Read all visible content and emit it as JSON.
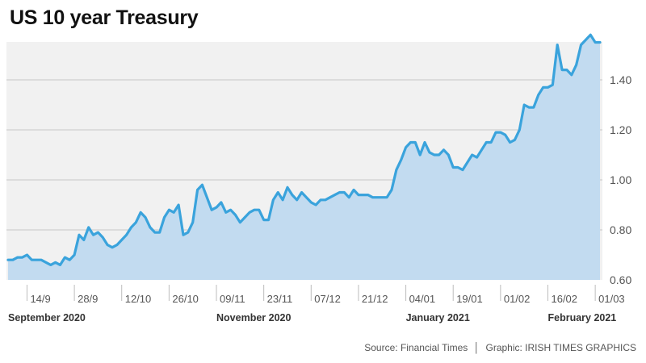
{
  "title": "US 10 year Treasury",
  "source_label": "Source: Financial Times",
  "graphic_label": "Graphic: IRISH TIMES GRAPHICS",
  "colors": {
    "plot_bg": "#f1f1f1",
    "area_fill": "#c2dbf0",
    "line": "#3aa3dc",
    "grid": "#c8c8c8",
    "axis_text": "#555555",
    "month_text": "#333333"
  },
  "chart_data": {
    "type": "area",
    "title": "US 10 year Treasury",
    "xlabel": "",
    "ylabel": "",
    "ylim": [
      0.6,
      1.6
    ],
    "yticks": [
      0.6,
      0.8,
      1.0,
      1.2,
      1.4
    ],
    "ytick_labels": [
      "0.60",
      "0.80",
      "1.00",
      "1.20",
      "1.40"
    ],
    "x_ticks": [
      {
        "label": "14/9",
        "index": 4
      },
      {
        "label": "28/9",
        "index": 14
      },
      {
        "label": "12/10",
        "index": 24
      },
      {
        "label": "26/10",
        "index": 34
      },
      {
        "label": "09/11",
        "index": 44
      },
      {
        "label": "23/11",
        "index": 54
      },
      {
        "label": "07/12",
        "index": 64
      },
      {
        "label": "21/12",
        "index": 74
      },
      {
        "label": "04/01",
        "index": 84
      },
      {
        "label": "19/01",
        "index": 94
      },
      {
        "label": "01/02",
        "index": 104
      },
      {
        "label": "16/02",
        "index": 114
      },
      {
        "label": "01/03",
        "index": 124
      }
    ],
    "month_labels": [
      {
        "label": "September 2020",
        "index": 0
      },
      {
        "label": "November 2020",
        "index": 44
      },
      {
        "label": "January 2021",
        "index": 84
      },
      {
        "label": "February 2021",
        "index": 114
      }
    ],
    "grid": true,
    "series": [
      {
        "name": "US 10 year Treasury yield",
        "values": [
          0.68,
          0.68,
          0.69,
          0.69,
          0.7,
          0.68,
          0.68,
          0.68,
          0.67,
          0.66,
          0.67,
          0.66,
          0.69,
          0.68,
          0.7,
          0.78,
          0.76,
          0.81,
          0.78,
          0.79,
          0.77,
          0.74,
          0.73,
          0.74,
          0.76,
          0.78,
          0.81,
          0.83,
          0.87,
          0.85,
          0.81,
          0.79,
          0.79,
          0.85,
          0.88,
          0.87,
          0.9,
          0.78,
          0.79,
          0.83,
          0.96,
          0.98,
          0.93,
          0.88,
          0.89,
          0.91,
          0.87,
          0.88,
          0.86,
          0.83,
          0.85,
          0.87,
          0.88,
          0.88,
          0.84,
          0.84,
          0.92,
          0.95,
          0.92,
          0.97,
          0.94,
          0.92,
          0.95,
          0.93,
          0.91,
          0.9,
          0.92,
          0.92,
          0.93,
          0.94,
          0.95,
          0.95,
          0.93,
          0.96,
          0.94,
          0.94,
          0.94,
          0.93,
          0.93,
          0.93,
          0.93,
          0.96,
          1.04,
          1.08,
          1.13,
          1.15,
          1.15,
          1.1,
          1.15,
          1.11,
          1.1,
          1.1,
          1.12,
          1.1,
          1.05,
          1.05,
          1.04,
          1.07,
          1.1,
          1.09,
          1.12,
          1.15,
          1.15,
          1.19,
          1.19,
          1.18,
          1.15,
          1.16,
          1.2,
          1.3,
          1.29,
          1.29,
          1.34,
          1.37,
          1.37,
          1.38,
          1.54,
          1.44,
          1.44,
          1.42,
          1.46,
          1.54,
          1.56,
          1.58,
          1.55,
          1.55
        ]
      }
    ]
  }
}
